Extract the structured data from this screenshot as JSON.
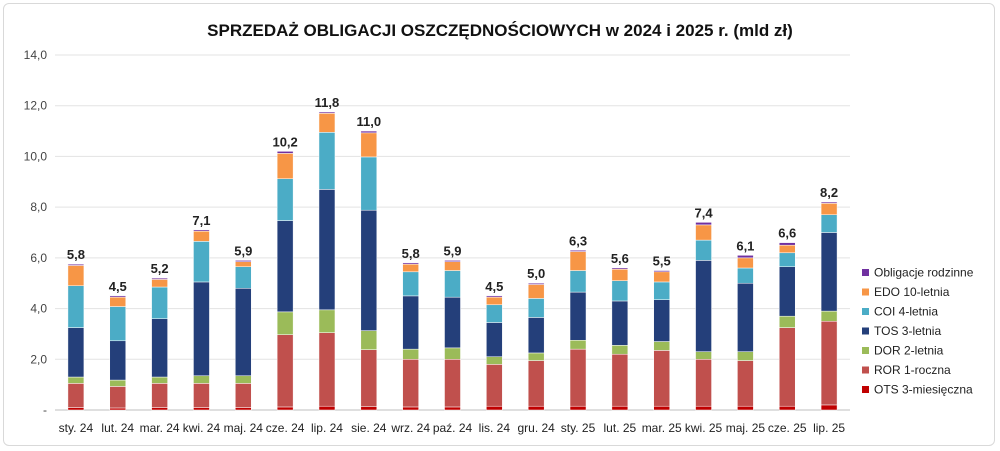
{
  "chart_data": {
    "type": "bar",
    "stacked": true,
    "title": "SPRZEDAŻ OBLIGACJI OSZCZĘDNOŚCIOWYCH w 2024 i 2025 r. (mld zł)",
    "xlabel": "",
    "ylabel": "",
    "ylim": [
      0,
      14
    ],
    "yticks": [
      "-",
      "2,0",
      "4,0",
      "6,0",
      "8,0",
      "10,0",
      "12,0",
      "14,0"
    ],
    "grid": true,
    "legend_position": "right",
    "categories": [
      "sty. 24",
      "lut. 24",
      "mar. 24",
      "kwi. 24",
      "maj. 24",
      "cze. 24",
      "lip. 24",
      "sie. 24",
      "wrz. 24",
      "paź. 24",
      "lis. 24",
      "gru. 24",
      "sty. 25",
      "lut. 25",
      "mar. 25",
      "kwi. 25",
      "maj. 25",
      "cze. 25",
      "lip. 25"
    ],
    "totals": [
      "5,8",
      "4,5",
      "5,2",
      "7,1",
      "5,9",
      "10,2",
      "11,8",
      "11,0",
      "5,8",
      "5,9",
      "4,5",
      "5,0",
      "6,3",
      "5,6",
      "5,5",
      "7,4",
      "6,1",
      "6,6",
      "8,2"
    ],
    "series": [
      {
        "name": "OTS 3-miesięczna",
        "color": "#c00000",
        "values": [
          0.1,
          0.08,
          0.1,
          0.1,
          0.1,
          0.12,
          0.15,
          0.13,
          0.12,
          0.12,
          0.15,
          0.15,
          0.15,
          0.15,
          0.15,
          0.15,
          0.15,
          0.15,
          0.2
        ]
      },
      {
        "name": "ROR 1-roczna",
        "color": "#c0504d",
        "values": [
          0.95,
          0.85,
          0.95,
          0.95,
          0.95,
          2.85,
          2.9,
          2.25,
          1.88,
          1.88,
          1.65,
          1.8,
          2.25,
          2.05,
          2.2,
          1.85,
          1.8,
          3.1,
          3.3
        ]
      },
      {
        "name": "DOR 2-letnia",
        "color": "#9bbb59",
        "values": [
          0.25,
          0.25,
          0.25,
          0.3,
          0.3,
          0.9,
          0.9,
          0.75,
          0.4,
          0.45,
          0.3,
          0.3,
          0.35,
          0.35,
          0.35,
          0.3,
          0.35,
          0.45,
          0.4
        ]
      },
      {
        "name": "TOS 3-letnia",
        "color": "#243f7a",
        "values": [
          1.95,
          1.55,
          2.3,
          3.7,
          3.45,
          3.6,
          4.75,
          4.75,
          2.1,
          2.0,
          1.35,
          1.4,
          1.9,
          1.75,
          1.65,
          3.6,
          2.7,
          1.95,
          3.1
        ]
      },
      {
        "name": "COI 4-letnia",
        "color": "#4bacc6",
        "values": [
          1.65,
          1.35,
          1.25,
          1.6,
          0.85,
          1.65,
          2.25,
          2.1,
          0.95,
          1.05,
          0.7,
          0.75,
          0.85,
          0.8,
          0.7,
          0.8,
          0.6,
          0.55,
          0.7
        ]
      },
      {
        "name": "EDO 10-letnia",
        "color": "#f79646",
        "values": [
          0.8,
          0.37,
          0.3,
          0.4,
          0.2,
          1.0,
          0.75,
          0.95,
          0.3,
          0.35,
          0.3,
          0.55,
          0.75,
          0.45,
          0.4,
          0.6,
          0.4,
          0.3,
          0.45
        ]
      },
      {
        "name": "Obligacje rodzinne",
        "color": "#7030a0",
        "values": [
          0.05,
          0.05,
          0.05,
          0.05,
          0.05,
          0.08,
          0.05,
          0.07,
          0.05,
          0.05,
          0.05,
          0.05,
          0.05,
          0.05,
          0.05,
          0.1,
          0.1,
          0.1,
          0.05
        ]
      }
    ]
  }
}
